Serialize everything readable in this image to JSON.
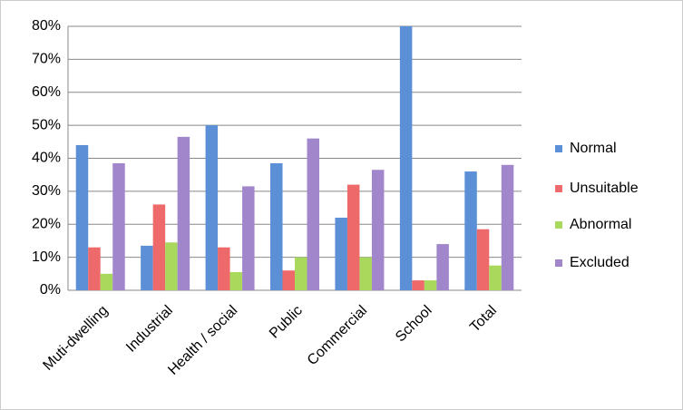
{
  "chart_data": {
    "type": "bar",
    "categories": [
      "Muti-dwelling",
      "Industrial",
      "Health / social",
      "Public",
      "Commercial",
      "School",
      "Total"
    ],
    "series": [
      {
        "name": "Normal",
        "color": "#5b8fd6",
        "values": [
          44,
          13.5,
          50,
          38.5,
          22,
          80,
          36
        ]
      },
      {
        "name": "Unsuitable",
        "color": "#ee6a6a",
        "values": [
          13,
          26,
          13,
          6,
          32,
          3,
          18.5
        ]
      },
      {
        "name": "Abnormal",
        "color": "#a9d95c",
        "values": [
          5,
          14.5,
          5.5,
          10,
          10,
          3,
          7.5
        ]
      },
      {
        "name": "Excluded",
        "color": "#a286cc",
        "values": [
          38.5,
          46.5,
          31.5,
          46,
          36.5,
          14,
          38
        ]
      }
    ],
    "ylim": [
      0,
      80
    ],
    "yticks": [
      {
        "value": 0,
        "label": "0%"
      },
      {
        "value": 10,
        "label": "10%"
      },
      {
        "value": 20,
        "label": "20%"
      },
      {
        "value": 30,
        "label": "30%"
      },
      {
        "value": 40,
        "label": "40%"
      },
      {
        "value": 50,
        "label": "50%"
      },
      {
        "value": 60,
        "label": "60%"
      },
      {
        "value": 70,
        "label": "70%"
      },
      {
        "value": 80,
        "label": "80%"
      }
    ],
    "grid": true,
    "legend": "right"
  }
}
